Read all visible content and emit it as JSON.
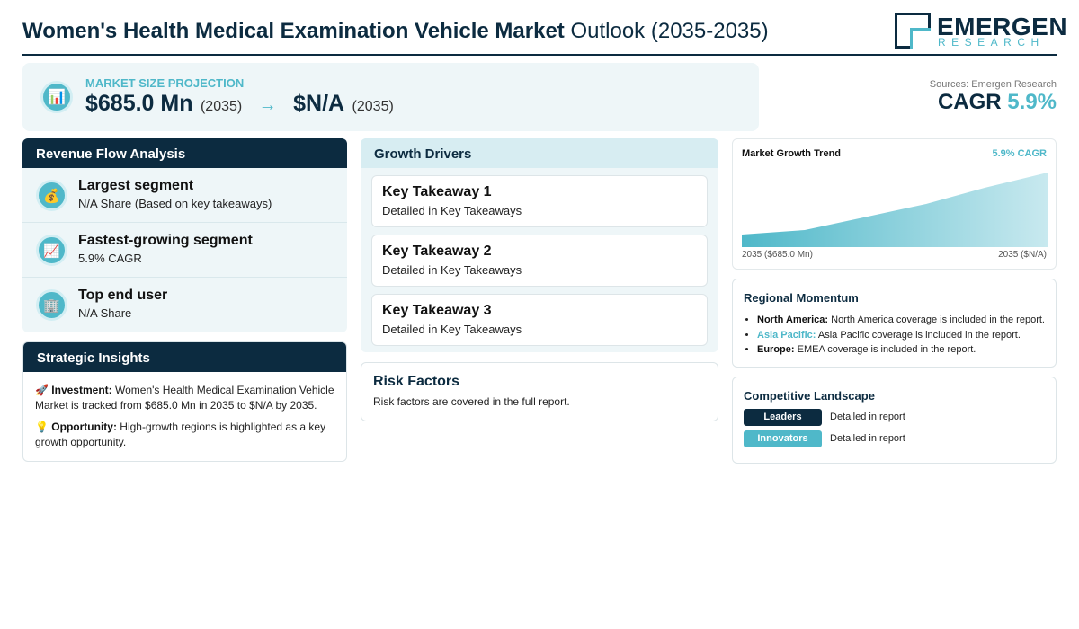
{
  "header": {
    "title_bold": "Women's Health Medical Examination Vehicle Market",
    "title_rest": "Outlook (2035-2035)",
    "logo_main": "EMERGEN",
    "logo_sub": "RESEARCH"
  },
  "projection": {
    "label": "MARKET SIZE PROJECTION",
    "value_start": "$685.0 Mn",
    "year_start": "(2035)",
    "arrow": "→",
    "value_end": "$N/A",
    "year_end": "(2035)",
    "sources": "Sources: Emergen Research",
    "cagr_label": "CAGR",
    "cagr_value": "5.9%"
  },
  "revenue_flow": {
    "title": "Revenue Flow Analysis",
    "segments": [
      {
        "icon": "money-bag-icon",
        "glyph": "💰",
        "title": "Largest segment",
        "sub": "N/A Share (Based on key takeaways)"
      },
      {
        "icon": "chart-up-icon",
        "glyph": "📈",
        "title": "Fastest-growing segment",
        "sub": "5.9% CAGR"
      },
      {
        "icon": "building-icon",
        "glyph": "🏢",
        "title": "Top end user",
        "sub": "N/A Share"
      }
    ]
  },
  "strategic": {
    "title": "Strategic Insights",
    "investment_glyph": "🚀",
    "investment_label": "Investment:",
    "investment_text": "Women's Health Medical Examination Vehicle Market is tracked from $685.0 Mn in 2035 to $N/A by 2035.",
    "opportunity_glyph": "💡",
    "opportunity_label": "Opportunity:",
    "opportunity_text": "High-growth regions is highlighted as a key growth opportunity."
  },
  "growth_drivers": {
    "title": "Growth Drivers",
    "items": [
      {
        "title": "Key Takeaway 1",
        "sub": "Detailed in Key Takeaways"
      },
      {
        "title": "Key Takeaway 2",
        "sub": "Detailed in Key Takeaways"
      },
      {
        "title": "Key Takeaway 3",
        "sub": "Detailed in Key Takeaways"
      }
    ]
  },
  "risk": {
    "title": "Risk Factors",
    "sub": "Risk factors are covered in the full report."
  },
  "trend": {
    "title": "Market Growth Trend",
    "cagr": "5.9% CAGR",
    "left_label": "2035 ($685.0 Mn)",
    "right_label": "2035 ($N/A)"
  },
  "regional": {
    "title": "Regional Momentum",
    "items": [
      {
        "region": "North America:",
        "text": "North America coverage is included in the report."
      },
      {
        "region": "Asia Pacific:",
        "text": "Asia Pacific coverage is included in the report."
      },
      {
        "region": "Europe:",
        "text": "EMEA coverage is included in the report."
      }
    ]
  },
  "competitive": {
    "title": "Competitive Landscape",
    "leaders_label": "Leaders",
    "leaders_text": "Detailed in report",
    "innovators_label": "Innovators",
    "innovators_text": "Detailed in report"
  },
  "colors": {
    "navy": "#0c2b40",
    "teal": "#4fb8c9",
    "panel_bg": "#eef6f8"
  }
}
